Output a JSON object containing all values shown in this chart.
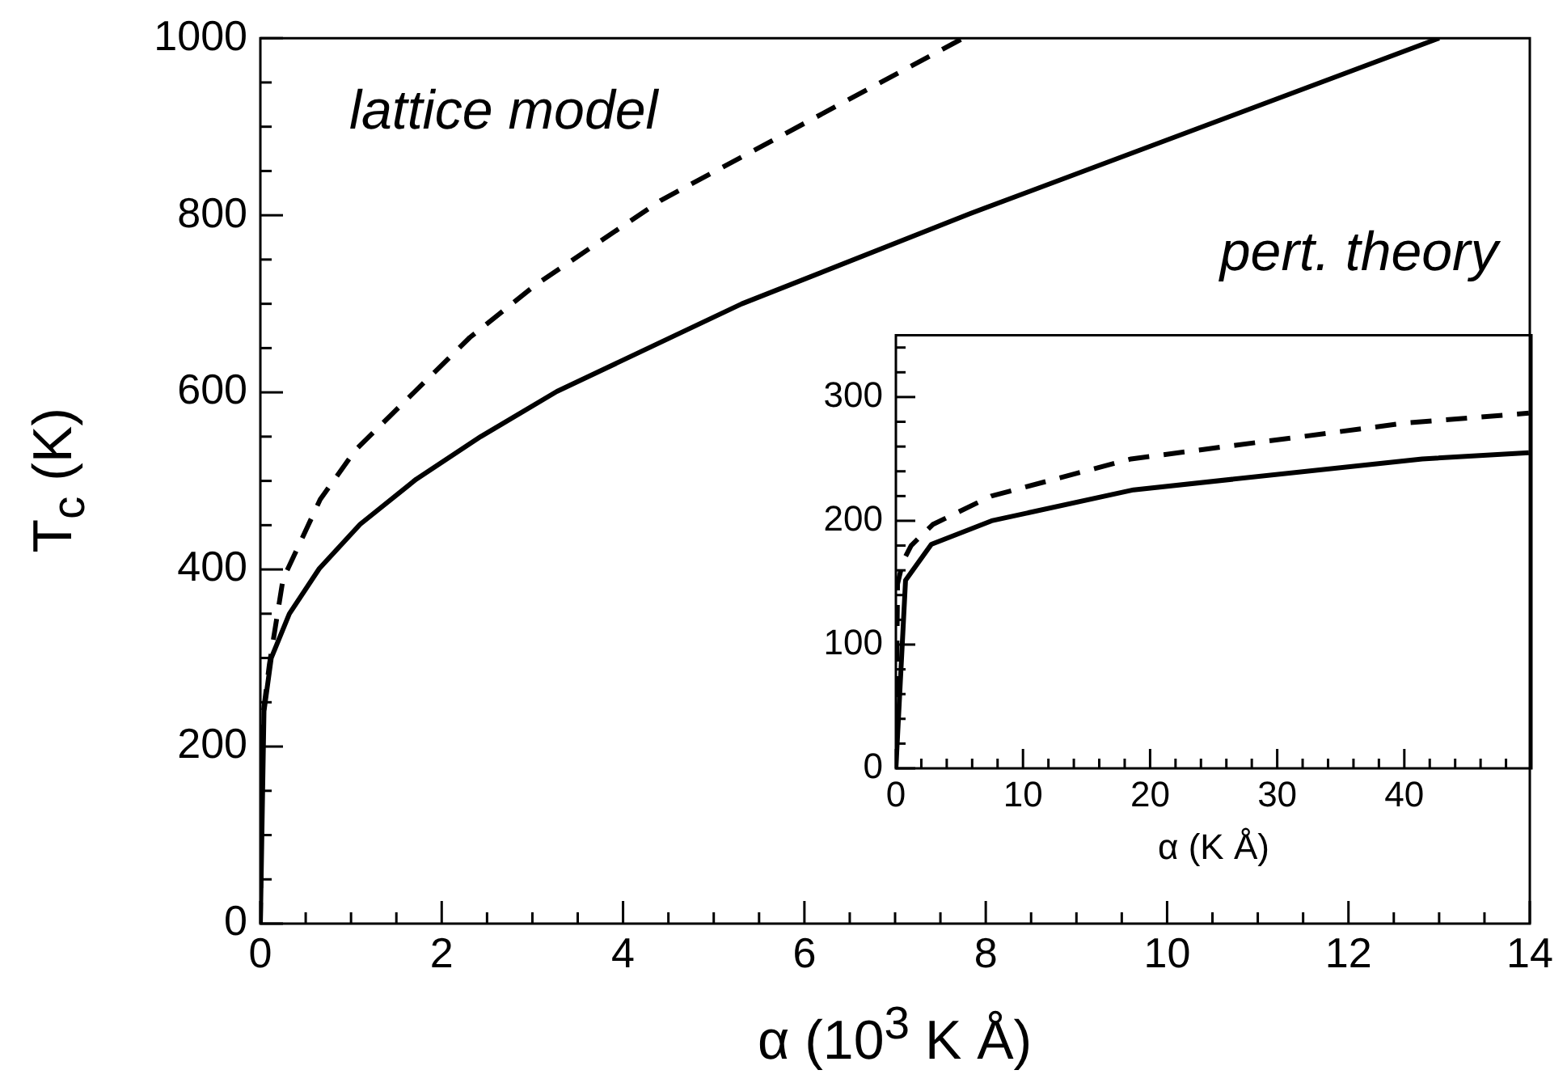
{
  "chart_data": [
    {
      "type": "line",
      "xlabel": "α  (10$^{3}$ K Å)",
      "ylabel": "T$_{c}$ (K)",
      "xlim": [
        0,
        14
      ],
      "ylim": [
        0,
        1000
      ],
      "xticks": [
        0,
        {
          "value": 0.5,
          "label": null
        },
        {
          "value": 1,
          "label": null
        },
        {
          "value": 1.5,
          "label": null
        },
        2,
        {
          "value": 2.5,
          "label": null
        },
        {
          "value": 3,
          "label": null
        },
        {
          "value": 3.5,
          "label": null
        },
        4,
        {
          "value": 4.5,
          "label": null
        },
        {
          "value": 5,
          "label": null
        },
        {
          "value": 5.5,
          "label": null
        },
        6,
        {
          "value": 6.5,
          "label": null
        },
        {
          "value": 7,
          "label": null
        },
        {
          "value": 7.5,
          "label": null
        },
        8,
        {
          "value": 8.5,
          "label": null
        },
        {
          "value": 9,
          "label": null
        },
        {
          "value": 9.5,
          "label": null
        },
        10,
        {
          "value": 10.5,
          "label": null
        },
        {
          "value": 11,
          "label": null
        },
        {
          "value": 11.5,
          "label": null
        },
        12,
        {
          "value": 12.5,
          "label": null
        },
        {
          "value": 13,
          "label": null
        },
        {
          "value": 13.5,
          "label": null
        },
        14
      ],
      "yticks": [
        0,
        {
          "value": 50,
          "label": null
        },
        {
          "value": 100,
          "label": null
        },
        {
          "value": 150,
          "label": null
        },
        200,
        {
          "value": 250,
          "label": null
        },
        {
          "value": 300,
          "label": null
        },
        {
          "value": 350,
          "label": null
        },
        400,
        {
          "value": 450,
          "label": null
        },
        {
          "value": 500,
          "label": null
        },
        {
          "value": 550,
          "label": null
        },
        600,
        {
          "value": 650,
          "label": null
        },
        {
          "value": 700,
          "label": null
        },
        {
          "value": 750,
          "label": null
        },
        800,
        {
          "value": 850,
          "label": null
        },
        {
          "value": 900,
          "label": null
        },
        {
          "value": 950,
          "label": null
        },
        1000
      ],
      "series": [
        {
          "name": "lattice model",
          "color": "#000000",
          "line_style": "dashed",
          "x": [
            0,
            0.02,
            0.1,
            0.25,
            0.66,
            1.05,
            2.31,
            3.03,
            4.42,
            7.75
          ],
          "values": [
            0,
            228,
            293,
            389,
            479,
            535,
            662,
            721,
            817,
            1000
          ]
        },
        {
          "name": "pert. theory",
          "color": "#000000",
          "line_style": "solid",
          "x": [
            0,
            0.04,
            0.12,
            0.32,
            0.65,
            1.1,
            1.72,
            2.43,
            3.27,
            5.31,
            7.83,
            13.0
          ],
          "values": [
            0,
            240,
            300,
            350,
            401,
            451,
            502,
            550,
            601,
            700,
            802,
            1000
          ]
        }
      ]
    },
    {
      "type": "line",
      "xlabel": "α (K Å)",
      "xlim": [
        0,
        50
      ],
      "ylim": [
        0,
        350
      ],
      "xticks": [
        0,
        {
          "value": 2,
          "label": null
        },
        {
          "value": 4,
          "label": null
        },
        {
          "value": 6,
          "label": null
        },
        {
          "value": 8,
          "label": null
        },
        10,
        {
          "value": 12,
          "label": null
        },
        {
          "value": 14,
          "label": null
        },
        {
          "value": 16,
          "label": null
        },
        {
          "value": 18,
          "label": null
        },
        20,
        {
          "value": 22,
          "label": null
        },
        {
          "value": 24,
          "label": null
        },
        {
          "value": 26,
          "label": null
        },
        {
          "value": 28,
          "label": null
        },
        30,
        {
          "value": 32,
          "label": null
        },
        {
          "value": 34,
          "label": null
        },
        {
          "value": 36,
          "label": null
        },
        {
          "value": 38,
          "label": null
        },
        40,
        {
          "value": 42,
          "label": null
        },
        {
          "value": 44,
          "label": null
        },
        {
          "value": 46,
          "label": null
        },
        {
          "value": 48,
          "label": null
        }
      ],
      "yticks": [
        0,
        {
          "value": 20,
          "label": null
        },
        {
          "value": 40,
          "label": null
        },
        {
          "value": 60,
          "label": null
        },
        {
          "value": 80,
          "label": null
        },
        100,
        {
          "value": 120,
          "label": null
        },
        {
          "value": 140,
          "label": null
        },
        {
          "value": 160,
          "label": null
        },
        {
          "value": 180,
          "label": null
        },
        200,
        {
          "value": 220,
          "label": null
        },
        {
          "value": 240,
          "label": null
        },
        {
          "value": 260,
          "label": null
        },
        {
          "value": 280,
          "label": null
        },
        300,
        {
          "value": 320,
          "label": null
        },
        {
          "value": 340,
          "label": null
        }
      ],
      "series": [
        {
          "color": "#000000",
          "line_style": "dashed",
          "x": [
            0,
            0.13,
            0.55,
            1.2,
            2.9,
            7.5,
            18.5,
            40.1,
            49.8
          ],
          "values": [
            0,
            149,
            167,
            180,
            197,
            220,
            250,
            279,
            287
          ]
        },
        {
          "color": "#000000",
          "line_style": "solid",
          "x": [
            0,
            0.76,
            2.79,
            7.53,
            18.7,
            41.4,
            49.8
          ],
          "values": [
            0,
            152,
            181,
            200,
            225,
            250,
            255
          ]
        }
      ]
    }
  ]
}
